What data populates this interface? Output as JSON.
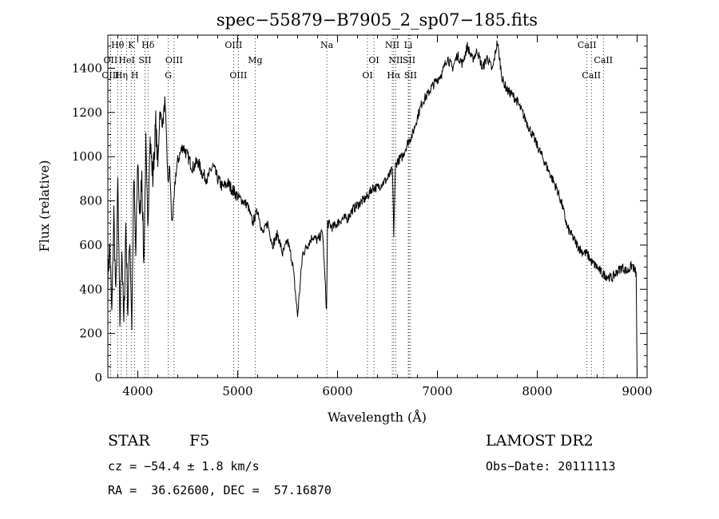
{
  "chart_data": {
    "type": "line",
    "title": "spec−55879−B7905_2_sp07−185.fits",
    "xlabel": "Wavelength (Å)",
    "ylabel": "Flux (relative)",
    "xlim": [
      3700,
      9100
    ],
    "ylim": [
      0,
      1550
    ],
    "x_ticks": [
      4000,
      5000,
      6000,
      7000,
      8000,
      9000
    ],
    "y_ticks": [
      0,
      200,
      400,
      600,
      800,
      1000,
      1200,
      1400
    ],
    "grid": false,
    "series": [
      {
        "x": [
          3700,
          3720,
          3740,
          3760,
          3780,
          3800,
          3820,
          3840,
          3860,
          3880,
          3900,
          3920,
          3940,
          3960,
          3980,
          4000,
          4020,
          4040,
          4060,
          4080,
          4100,
          4120,
          4150,
          4180,
          4200,
          4220,
          4250,
          4270,
          4290,
          4300,
          4320,
          4340,
          4360,
          4380,
          4400,
          4450,
          4500,
          4550,
          4600,
          4650,
          4700,
          4750,
          4800,
          4850,
          4900,
          4950,
          5000,
          5050,
          5100,
          5150,
          5200,
          5250,
          5300,
          5350,
          5400,
          5450,
          5500,
          5550,
          5600,
          5650,
          5700,
          5750,
          5800,
          5850,
          5890,
          5900,
          5950,
          6000,
          6050,
          6100,
          6150,
          6200,
          6250,
          6300,
          6350,
          6400,
          6450,
          6500,
          6550,
          6563,
          6580,
          6600,
          6650,
          6700,
          6750,
          6800,
          6850,
          6900,
          6950,
          7000,
          7050,
          7100,
          7150,
          7200,
          7250,
          7300,
          7350,
          7400,
          7450,
          7500,
          7550,
          7600,
          7650,
          7700,
          7750,
          7800,
          7850,
          7900,
          7950,
          8000,
          8050,
          8100,
          8150,
          8200,
          8250,
          8300,
          8350,
          8400,
          8450,
          8500,
          8550,
          8600,
          8650,
          8700,
          8750,
          8800,
          8850,
          8900,
          8950,
          8990,
          9000
        ],
        "y": [
          450,
          600,
          280,
          750,
          350,
          880,
          250,
          600,
          220,
          700,
          300,
          650,
          240,
          900,
          550,
          1000,
          700,
          950,
          500,
          1050,
          650,
          1100,
          900,
          1150,
          950,
          1200,
          1150,
          1250,
          1050,
          880,
          950,
          700,
          780,
          920,
          980,
          1050,
          1000,
          950,
          980,
          920,
          900,
          960,
          900,
          860,
          880,
          850,
          820,
          800,
          780,
          700,
          760,
          650,
          700,
          600,
          650,
          560,
          620,
          520,
          280,
          560,
          600,
          640,
          620,
          660,
          300,
          700,
          680,
          700,
          720,
          720,
          760,
          780,
          800,
          820,
          860,
          860,
          880,
          900,
          940,
          650,
          960,
          980,
          1000,
          1060,
          1100,
          1180,
          1250,
          1280,
          1320,
          1350,
          1380,
          1450,
          1400,
          1460,
          1420,
          1500,
          1440,
          1480,
          1400,
          1450,
          1390,
          1520,
          1350,
          1300,
          1280,
          1250,
          1200,
          1150,
          1100,
          1050,
          1000,
          950,
          900,
          850,
          780,
          680,
          640,
          600,
          570,
          560,
          520,
          500,
          470,
          460,
          450,
          480,
          500,
          480,
          510,
          470,
          0
        ]
      }
    ],
    "line_markers": [
      {
        "label": "Hθ",
        "x": 3798,
        "row": 0
      },
      {
        "label": "K",
        "x": 3934,
        "row": 0
      },
      {
        "label": "Hδ",
        "x": 4102,
        "row": 0
      },
      {
        "label": "OII",
        "x": 3727,
        "row": 1
      },
      {
        "label": "HeI",
        "x": 3889,
        "row": 1
      },
      {
        "label": "SII",
        "x": 4072,
        "row": 1
      },
      {
        "label": "OIII",
        "x": 4363,
        "row": 1
      },
      {
        "label": "OIII",
        "x": 3727,
        "row": 2
      },
      {
        "label": "Hη",
        "x": 3835,
        "row": 2
      },
      {
        "label": "H",
        "x": 3969,
        "row": 2
      },
      {
        "label": "G",
        "x": 4305,
        "row": 2
      },
      {
        "label": "OIII",
        "x": 4959,
        "row": 0
      },
      {
        "label": "Mg",
        "x": 5175,
        "row": 1
      },
      {
        "label": "OIII",
        "x": 5007,
        "row": 2
      },
      {
        "label": "Na",
        "x": 5893,
        "row": 0
      },
      {
        "label": "OI",
        "x": 6364,
        "row": 1
      },
      {
        "label": "OI",
        "x": 6300,
        "row": 2
      },
      {
        "label": "NII",
        "x": 6548,
        "row": 0
      },
      {
        "label": "Li",
        "x": 6708,
        "row": 0
      },
      {
        "label": "NII",
        "x": 6583,
        "row": 1
      },
      {
        "label": "SII",
        "x": 6716,
        "row": 1
      },
      {
        "label": "Hα",
        "x": 6563,
        "row": 2
      },
      {
        "label": "SII",
        "x": 6731,
        "row": 2
      },
      {
        "label": "CaII",
        "x": 8498,
        "row": 0
      },
      {
        "label": "CaII",
        "x": 8662,
        "row": 1
      },
      {
        "label": "CaII",
        "x": 8542,
        "row": 2
      }
    ]
  },
  "footer": {
    "obj_class": "STAR",
    "subclass": "F5",
    "survey": "LAMOST DR2",
    "cz": "cz = −54.4 ± 1.8 km/s",
    "obs_date": "Obs−Date: 20111113",
    "radec": "RA =  36.62600, DEC =  57.16870"
  }
}
